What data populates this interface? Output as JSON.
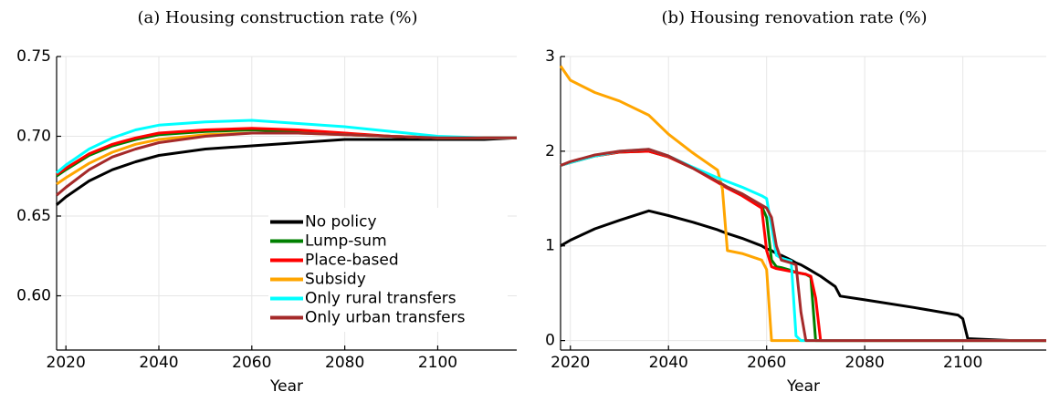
{
  "chart_data": [
    {
      "type": "line",
      "title": "(a) Housing construction rate (%)",
      "xlabel": "Year",
      "x": [
        2018,
        2020,
        2025,
        2030,
        2035,
        2040,
        2050,
        2060,
        2070,
        2080,
        2090,
        2100,
        2110,
        2117
      ],
      "series": [
        {
          "name": "No policy",
          "color": "#000000",
          "values": [
            0.657,
            0.662,
            0.672,
            0.679,
            0.684,
            0.688,
            0.692,
            0.694,
            0.696,
            0.698,
            0.698,
            0.698,
            0.698,
            0.699
          ]
        },
        {
          "name": "Lump-sum",
          "color": "#008000",
          "values": [
            0.675,
            0.679,
            0.688,
            0.694,
            0.698,
            0.701,
            0.703,
            0.704,
            0.703,
            0.701,
            0.7,
            0.699,
            0.699,
            0.699
          ]
        },
        {
          "name": "Place-based",
          "color": "#ff0000",
          "values": [
            0.676,
            0.68,
            0.689,
            0.695,
            0.699,
            0.702,
            0.704,
            0.705,
            0.704,
            0.702,
            0.7,
            0.699,
            0.699,
            0.699
          ]
        },
        {
          "name": "Subsidy",
          "color": "#ffa500",
          "values": [
            0.67,
            0.674,
            0.683,
            0.69,
            0.695,
            0.698,
            0.701,
            0.702,
            0.702,
            0.701,
            0.7,
            0.699,
            0.699,
            0.699
          ]
        },
        {
          "name": "Only rural transfers",
          "color": "#00ffff",
          "values": [
            0.677,
            0.682,
            0.692,
            0.699,
            0.704,
            0.707,
            0.709,
            0.71,
            0.708,
            0.706,
            0.703,
            0.7,
            0.699,
            0.699
          ]
        },
        {
          "name": "Only urban transfers",
          "color": "#a52a2a",
          "values": [
            0.663,
            0.668,
            0.679,
            0.687,
            0.692,
            0.696,
            0.7,
            0.702,
            0.702,
            0.701,
            0.7,
            0.699,
            0.699,
            0.699
          ]
        }
      ],
      "xlim": [
        2018,
        2117
      ],
      "xticks": [
        2020,
        2040,
        2060,
        2080,
        2100
      ],
      "ylim": [
        0.566,
        0.75
      ],
      "yticks": [
        {
          "value": 0.6,
          "label": "0.60"
        },
        0.65,
        {
          "value": 0.7,
          "label": "0.70"
        },
        0.75
      ],
      "grid": true,
      "legend": "lower right"
    },
    {
      "type": "line",
      "title": "(b) Housing renovation rate (%)",
      "xlabel": "Year",
      "x": [
        2018,
        2020,
        2025,
        2030,
        2036,
        2040,
        2045,
        2050,
        2051,
        2052,
        2055,
        2059,
        2060,
        2061,
        2062,
        2063,
        2065,
        2066,
        2067,
        2068,
        2069,
        2070,
        2071,
        2074,
        2075,
        2080,
        2090,
        2099,
        2100,
        2101,
        2110,
        2117
      ],
      "series": [
        {
          "name": "No policy",
          "color": "#000000",
          "values": [
            1.0,
            1.06,
            1.18,
            1.27,
            1.37,
            1.32,
            1.25,
            1.17,
            1.15,
            1.13,
            1.08,
            1.0,
            0.97,
            0.95,
            0.92,
            0.9,
            0.85,
            0.82,
            0.8,
            0.77,
            0.74,
            0.71,
            0.68,
            0.57,
            0.47,
            0.43,
            0.35,
            0.27,
            0.23,
            0.02,
            0,
            0
          ]
        },
        {
          "name": "Lump-sum",
          "color": "#008000",
          "values": [
            1.85,
            1.88,
            1.95,
            1.99,
            2.0,
            1.94,
            1.82,
            1.68,
            1.65,
            1.62,
            1.55,
            1.42,
            1.3,
            0.85,
            0.78,
            0.77,
            0.74,
            0.72,
            0.71,
            0.7,
            0.67,
            0,
            0,
            0,
            0,
            0,
            0,
            0,
            0,
            0,
            0,
            0
          ]
        },
        {
          "name": "Place-based",
          "color": "#ff0000",
          "values": [
            1.85,
            1.88,
            1.95,
            1.99,
            2.0,
            1.94,
            1.82,
            1.67,
            1.64,
            1.61,
            1.53,
            1.4,
            0.95,
            0.78,
            0.76,
            0.75,
            0.73,
            0.72,
            0.71,
            0.7,
            0.68,
            0.45,
            0,
            0,
            0,
            0,
            0,
            0,
            0,
            0,
            0,
            0
          ]
        },
        {
          "name": "Subsidy",
          "color": "#ffa500",
          "values": [
            2.9,
            2.75,
            2.62,
            2.53,
            2.38,
            2.18,
            1.98,
            1.8,
            1.6,
            0.95,
            0.92,
            0.85,
            0.75,
            0,
            0,
            0,
            0,
            0,
            0,
            0,
            0,
            0,
            0,
            0,
            0,
            0,
            0,
            0,
            0,
            0,
            0,
            0
          ]
        },
        {
          "name": "Only rural transfers",
          "color": "#00ffff",
          "values": [
            1.85,
            1.88,
            1.95,
            2.0,
            2.02,
            1.95,
            1.83,
            1.72,
            1.7,
            1.68,
            1.62,
            1.53,
            1.5,
            1.2,
            0.9,
            0.87,
            0.84,
            0.05,
            0,
            0,
            0,
            0,
            0,
            0,
            0,
            0,
            0,
            0,
            0,
            0,
            0,
            0
          ]
        },
        {
          "name": "Only urban transfers",
          "color": "#a52a2a",
          "values": [
            1.85,
            1.89,
            1.96,
            2.0,
            2.02,
            1.95,
            1.82,
            1.68,
            1.65,
            1.62,
            1.55,
            1.43,
            1.4,
            1.3,
            1.0,
            0.85,
            0.82,
            0.8,
            0.3,
            0,
            0,
            0,
            0,
            0,
            0,
            0,
            0,
            0,
            0,
            0,
            0,
            0
          ]
        }
      ],
      "xlim": [
        2018,
        2117
      ],
      "xticks": [
        2020,
        2040,
        2060,
        2080,
        2100
      ],
      "ylim": [
        -0.1,
        3
      ],
      "yticks": [
        0,
        1,
        2,
        3
      ],
      "grid": true
    }
  ]
}
